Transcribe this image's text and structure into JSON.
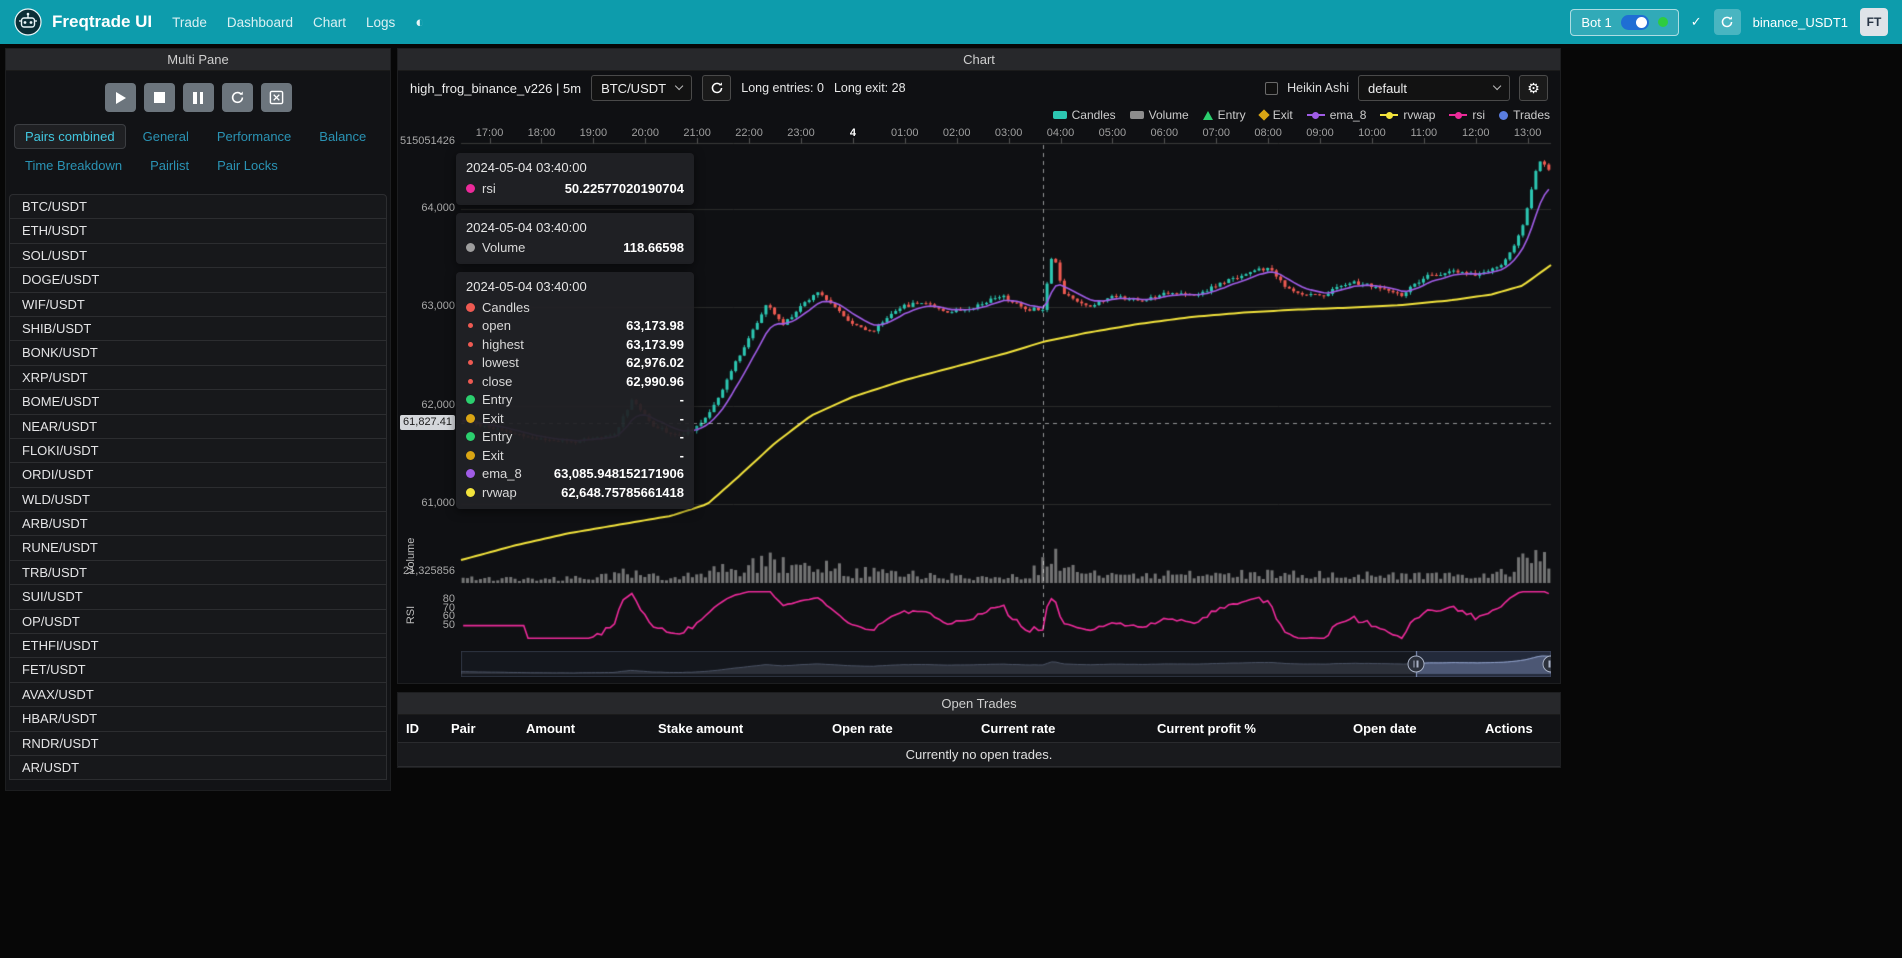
{
  "navbar": {
    "brand": "Freqtrade UI",
    "links": [
      "Trade",
      "Dashboard",
      "Chart",
      "Logs"
    ],
    "bot_pill": {
      "label": "Bot 1"
    },
    "bot_name": "binance_USDT1",
    "avatar_initials": "FT"
  },
  "sidebar": {
    "title": "Multi Pane",
    "tabs": [
      {
        "label": "Pairs combined",
        "active": true
      },
      {
        "label": "General",
        "active": false
      },
      {
        "label": "Performance",
        "active": false
      },
      {
        "label": "Balance",
        "active": false
      },
      {
        "label": "Time Breakdown",
        "active": false
      },
      {
        "label": "Pairlist",
        "active": false
      },
      {
        "label": "Pair Locks",
        "active": false
      }
    ],
    "pairs": [
      "BTC/USDT",
      "ETH/USDT",
      "SOL/USDT",
      "DOGE/USDT",
      "WIF/USDT",
      "SHIB/USDT",
      "BONK/USDT",
      "XRP/USDT",
      "BOME/USDT",
      "NEAR/USDT",
      "FLOKI/USDT",
      "ORDI/USDT",
      "WLD/USDT",
      "ARB/USDT",
      "RUNE/USDT",
      "TRB/USDT",
      "SUI/USDT",
      "OP/USDT",
      "ETHFI/USDT",
      "FET/USDT",
      "AVAX/USDT",
      "HBAR/USDT",
      "RNDR/USDT",
      "AR/USDT"
    ]
  },
  "chart": {
    "panel_title": "Chart",
    "strategy_label": "high_frog_binance_v226 | 5m",
    "pair_selected": "BTC/USDT",
    "entries_label": "Long entries: 0",
    "exits_label": "Long exit: 28",
    "heikin_ashi_label": "Heikin Ashi",
    "plot_config_selected": "default",
    "legend": [
      {
        "label": "Candles",
        "marker": "rect",
        "color": "#2cc7b2"
      },
      {
        "label": "Volume",
        "marker": "rect",
        "color": "#8d8d8d"
      },
      {
        "label": "Entry",
        "marker": "triangle",
        "color": "#2bcf6e"
      },
      {
        "label": "Exit",
        "marker": "diamond",
        "color": "#d9a514"
      },
      {
        "label": "ema_8",
        "marker": "line",
        "color": "#a05ce6"
      },
      {
        "label": "rvwap",
        "marker": "line",
        "color": "#f2e33c"
      },
      {
        "label": "rsi",
        "marker": "line",
        "color": "#ec2a9a"
      },
      {
        "label": "Trades",
        "marker": "circle",
        "color": "#5a7de0"
      }
    ],
    "axis": {
      "top_left_value": "515051426",
      "price_ticks": [
        "64,000",
        "63,000",
        "62,000",
        "61,000"
      ],
      "volume_axis_value": "21,325856",
      "volume_pane_label": "Volume",
      "rsi_pane_label": "RSI",
      "rsi_ticks": [
        "80",
        "70",
        "60",
        "50"
      ],
      "time_ticks": [
        "17:00",
        "18:00",
        "19:00",
        "20:00",
        "21:00",
        "22:00",
        "23:00",
        "4",
        "01:00",
        "02:00",
        "03:00",
        "04:00",
        "05:00",
        "06:00",
        "07:00",
        "08:00",
        "09:00",
        "10:00",
        "11:00",
        "12:00",
        "13:00"
      ],
      "time_emphasis_index": 7,
      "crosshair_price_label": "61,827.41"
    },
    "tooltip": {
      "groups": [
        {
          "date": "2024-05-04 03:40:00",
          "rows": [
            {
              "dot": "#ec2a9a",
              "label": "rsi",
              "value": "50.22577020190704"
            }
          ]
        },
        {
          "date": "2024-05-04 03:40:00",
          "rows": [
            {
              "dot": "#9e9e9e",
              "label": "Volume",
              "value": "118.66598"
            }
          ]
        },
        {
          "date": "2024-05-04 03:40:00",
          "rows": [
            {
              "dot": "#ee5a52",
              "label": "Candles",
              "value": ""
            },
            {
              "dot": "#ee5a52",
              "small": true,
              "label": "open",
              "value": "63,173.98"
            },
            {
              "dot": "#ee5a52",
              "small": true,
              "label": "highest",
              "value": "63,173.99"
            },
            {
              "dot": "#ee5a52",
              "small": true,
              "label": "lowest",
              "value": "62,976.02"
            },
            {
              "dot": "#ee5a52",
              "small": true,
              "label": "close",
              "value": "62,990.96"
            },
            {
              "dot": "#2bcf6e",
              "label": "Entry",
              "value": "-"
            },
            {
              "dot": "#d9a514",
              "label": "Exit",
              "value": "-"
            },
            {
              "dot": "#2bcf6e",
              "label": "Entry",
              "value": "-"
            },
            {
              "dot": "#d9a514",
              "label": "Exit",
              "value": "-"
            },
            {
              "dot": "#a05ce6",
              "label": "ema_8",
              "value": "63,085.948152171906"
            },
            {
              "dot": "#f2e33c",
              "label": "rvwap",
              "value": "62,648.75785661418"
            }
          ]
        }
      ]
    }
  },
  "chart_data": {
    "type": "candlestick",
    "pair": "BTC/USDT",
    "timeframe": "5m",
    "x_domain_hours": [
      -0.55,
      20.45
    ],
    "x_tick_hours": [
      0,
      1,
      2,
      3,
      4,
      5,
      6,
      7,
      8,
      9,
      10,
      11,
      12,
      13,
      14,
      15,
      16,
      17,
      18,
      19,
      20
    ],
    "price_range": [
      60400,
      64650
    ],
    "price_gridlines": [
      64000,
      63000,
      62000,
      61000
    ],
    "rsi_range": [
      33,
      92
    ],
    "rsi_gridlines": [
      80,
      70,
      60,
      50
    ],
    "seed": 11,
    "close_anchors": [
      [
        -0.55,
        61850
      ],
      [
        0,
        61780
      ],
      [
        0.8,
        61670
      ],
      [
        1.6,
        61630
      ],
      [
        2.4,
        61700
      ],
      [
        2.75,
        62070
      ],
      [
        3.1,
        61820
      ],
      [
        3.6,
        61690
      ],
      [
        4.05,
        61790
      ],
      [
        4.4,
        62080
      ],
      [
        4.9,
        62600
      ],
      [
        5.35,
        63030
      ],
      [
        5.65,
        62820
      ],
      [
        6.05,
        63040
      ],
      [
        6.35,
        63170
      ],
      [
        6.85,
        62890
      ],
      [
        7.35,
        62740
      ],
      [
        7.85,
        62990
      ],
      [
        8.35,
        63060
      ],
      [
        8.85,
        62950
      ],
      [
        9.35,
        63010
      ],
      [
        9.85,
        63120
      ],
      [
        10.35,
        62980
      ],
      [
        10.667,
        62991
      ],
      [
        10.85,
        63590
      ],
      [
        11.05,
        63140
      ],
      [
        11.55,
        63010
      ],
      [
        12.05,
        63120
      ],
      [
        12.55,
        63060
      ],
      [
        13.05,
        63160
      ],
      [
        13.55,
        63110
      ],
      [
        14.05,
        63230
      ],
      [
        14.55,
        63340
      ],
      [
        15,
        63400
      ],
      [
        15.45,
        63150
      ],
      [
        16.05,
        63120
      ],
      [
        16.55,
        63260
      ],
      [
        17.05,
        63210
      ],
      [
        17.55,
        63120
      ],
      [
        18.05,
        63310
      ],
      [
        18.55,
        63360
      ],
      [
        19.05,
        63330
      ],
      [
        19.55,
        63450
      ],
      [
        19.9,
        63800
      ],
      [
        20.2,
        64480
      ],
      [
        20.45,
        64400
      ]
    ],
    "rvwap_anchors": [
      [
        -0.55,
        60430
      ],
      [
        0.5,
        60580
      ],
      [
        1.5,
        60700
      ],
      [
        2.5,
        60790
      ],
      [
        3.5,
        60880
      ],
      [
        4.2,
        61000
      ],
      [
        4.8,
        61280
      ],
      [
        5.5,
        61620
      ],
      [
        6.2,
        61900
      ],
      [
        7,
        62090
      ],
      [
        8,
        62260
      ],
      [
        9,
        62400
      ],
      [
        10,
        62540
      ],
      [
        10.667,
        62649
      ],
      [
        11.5,
        62740
      ],
      [
        12.5,
        62830
      ],
      [
        13.5,
        62900
      ],
      [
        14.5,
        62945
      ],
      [
        15.5,
        62975
      ],
      [
        16.5,
        62995
      ],
      [
        17.5,
        63020
      ],
      [
        18.5,
        63070
      ],
      [
        19.3,
        63130
      ],
      [
        19.9,
        63220
      ],
      [
        20.45,
        63430
      ]
    ],
    "volume_anchors": [
      [
        -0.55,
        0.18
      ],
      [
        1,
        0.15
      ],
      [
        2,
        0.18
      ],
      [
        2.75,
        0.4
      ],
      [
        3.5,
        0.15
      ],
      [
        4.3,
        0.45
      ],
      [
        5,
        0.6
      ],
      [
        5.4,
        0.75
      ],
      [
        6,
        0.5
      ],
      [
        6.4,
        0.6
      ],
      [
        7,
        0.4
      ],
      [
        7.5,
        0.45
      ],
      [
        8.5,
        0.25
      ],
      [
        9.5,
        0.22
      ],
      [
        10.3,
        0.25
      ],
      [
        10.85,
        1
      ],
      [
        11.2,
        0.45
      ],
      [
        12,
        0.25
      ],
      [
        13,
        0.3
      ],
      [
        14,
        0.3
      ],
      [
        15,
        0.35
      ],
      [
        16,
        0.3
      ],
      [
        17,
        0.28
      ],
      [
        18,
        0.3
      ],
      [
        19,
        0.25
      ],
      [
        19.6,
        0.4
      ],
      [
        20.1,
        0.95
      ],
      [
        20.45,
        0.8
      ]
    ],
    "crosshair": {
      "hour": 10.6667,
      "price": 61827.41
    },
    "datazoom_window": [
      0.876,
      1
    ]
  },
  "open_trades": {
    "panel_title": "Open Trades",
    "columns": [
      "ID",
      "Pair",
      "Amount",
      "Stake amount",
      "Open rate",
      "Current rate",
      "Current profit %",
      "Open date",
      "Actions"
    ],
    "empty_message": "Currently no open trades."
  },
  "colors": {
    "navbar_bg": "#0d9cac",
    "candle_up": "#2cc7b2",
    "candle_down": "#ee5a52",
    "ema_8": "#a05ce6",
    "rvwap": "#f2e33c",
    "rsi": "#ec2a9a",
    "volume_bar": "#969696",
    "accent": "#41c7e0",
    "status_online": "#2ecc40"
  }
}
